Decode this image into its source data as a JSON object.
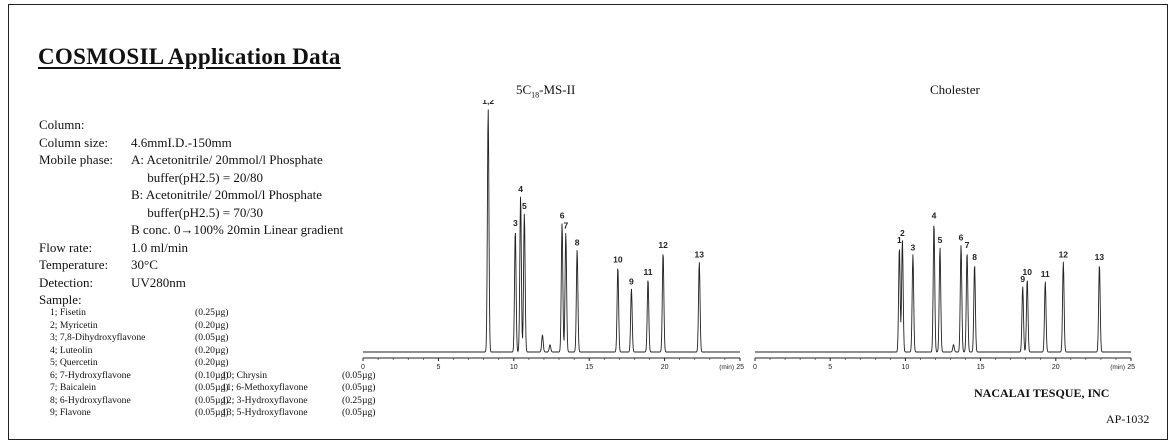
{
  "title": "COSMOSIL Application Data",
  "conditions": [
    {
      "label": "Column:",
      "value": ""
    },
    {
      "label": "Column size:",
      "value": "4.6mmI.D.-150mm"
    },
    {
      "label": "Mobile phase:",
      "value": "A: Acetonitrile/ 20mmol/l Phosphate"
    },
    {
      "label": "",
      "value": "     buffer(pH2.5) = 20/80"
    },
    {
      "label": "",
      "value": "B: Acetonitrile/ 20mmol/l Phosphate"
    },
    {
      "label": "",
      "value": "     buffer(pH2.5) = 70/30"
    },
    {
      "label": "",
      "value": "B conc. 0→100% 20min Linear gradient"
    },
    {
      "label": "Flow rate:",
      "value": "1.0 ml/min"
    },
    {
      "label": "Temperature:",
      "value": "30°C"
    },
    {
      "label": "Detection:",
      "value": "UV280nm"
    },
    {
      "label": "Sample:",
      "value": ""
    }
  ],
  "samples_left": [
    {
      "name": "1; Fisetin",
      "amount": "(0.25µg)"
    },
    {
      "name": "2; Myricetin",
      "amount": "(0.20µg)"
    },
    {
      "name": "3; 7,8-Dihydroxyflavone",
      "amount": "(0.05µg)"
    },
    {
      "name": "4; Luteolin",
      "amount": "(0.20µg)"
    },
    {
      "name": "5; Quercetin",
      "amount": "(0.20µg)"
    },
    {
      "name": "6; 7-Hydroxyflavone",
      "amount": "(0.10µg)"
    },
    {
      "name": "7; Baicalein",
      "amount": "(0.05µg)"
    },
    {
      "name": "8; 6-Hydroxyflavone",
      "amount": "(0.05µg)"
    },
    {
      "name": "9; Flavone",
      "amount": "(0.05µg)"
    }
  ],
  "samples_right": [
    {
      "name": "10; Chrysin",
      "amount": "(0.05µg)"
    },
    {
      "name": "11; 6-Methoxyflavone",
      "amount": "(0.05µg)"
    },
    {
      "name": "12; 3-Hydroxyflavone",
      "amount": "(0.25µg)"
    },
    {
      "name": "13; 5-Hydroxyflavone",
      "amount": "(0.05µg)"
    }
  ],
  "footer": {
    "company": "NACALAI TESQUE, INC",
    "code": "AP-1032"
  },
  "chart_data": [
    {
      "type": "line",
      "title_main": "5C",
      "title_sub": "18",
      "title_suffix": "-MS-II",
      "xlim": [
        0,
        25
      ],
      "xticks": [
        0,
        5,
        10,
        15,
        20,
        25
      ],
      "xunit": "(min)",
      "ylim": [
        0,
        1
      ],
      "peaks": [
        {
          "label": "1,2",
          "rt": 8.3,
          "h": 1.0
        },
        {
          "label": "3",
          "rt": 10.1,
          "h": 0.5
        },
        {
          "label": "4",
          "rt": 10.45,
          "h": 0.64
        },
        {
          "label": "5",
          "rt": 10.7,
          "h": 0.57
        },
        {
          "label": "",
          "rt": 11.9,
          "h": 0.07
        },
        {
          "label": "",
          "rt": 12.4,
          "h": 0.03
        },
        {
          "label": "6",
          "rt": 13.2,
          "h": 0.53
        },
        {
          "label": "7",
          "rt": 13.45,
          "h": 0.49
        },
        {
          "label": "8",
          "rt": 14.2,
          "h": 0.42
        },
        {
          "label": "10",
          "rt": 16.9,
          "h": 0.35
        },
        {
          "label": "9",
          "rt": 17.8,
          "h": 0.26
        },
        {
          "label": "11",
          "rt": 18.9,
          "h": 0.3
        },
        {
          "label": "12",
          "rt": 19.9,
          "h": 0.41
        },
        {
          "label": "13",
          "rt": 22.3,
          "h": 0.37
        }
      ]
    },
    {
      "type": "line",
      "title_main": "Cholester",
      "title_sub": "",
      "title_suffix": "",
      "xlim": [
        0,
        25
      ],
      "xticks": [
        0,
        5,
        10,
        15,
        20,
        25
      ],
      "xunit": "(min)",
      "ylim": [
        0,
        1
      ],
      "peaks": [
        {
          "label": "1",
          "rt": 9.6,
          "h": 0.43
        },
        {
          "label": "2",
          "rt": 9.8,
          "h": 0.46
        },
        {
          "label": "3",
          "rt": 10.5,
          "h": 0.4
        },
        {
          "label": "4",
          "rt": 11.9,
          "h": 0.53
        },
        {
          "label": "5",
          "rt": 12.3,
          "h": 0.43
        },
        {
          "label": "",
          "rt": 13.2,
          "h": 0.03
        },
        {
          "label": "6",
          "rt": 13.7,
          "h": 0.44
        },
        {
          "label": "7",
          "rt": 14.1,
          "h": 0.41
        },
        {
          "label": "8",
          "rt": 14.6,
          "h": 0.36
        },
        {
          "label": "9",
          "rt": 17.8,
          "h": 0.27
        },
        {
          "label": "10",
          "rt": 18.1,
          "h": 0.3
        },
        {
          "label": "11",
          "rt": 19.3,
          "h": 0.29
        },
        {
          "label": "12",
          "rt": 20.5,
          "h": 0.37
        },
        {
          "label": "13",
          "rt": 22.9,
          "h": 0.36
        }
      ]
    }
  ]
}
